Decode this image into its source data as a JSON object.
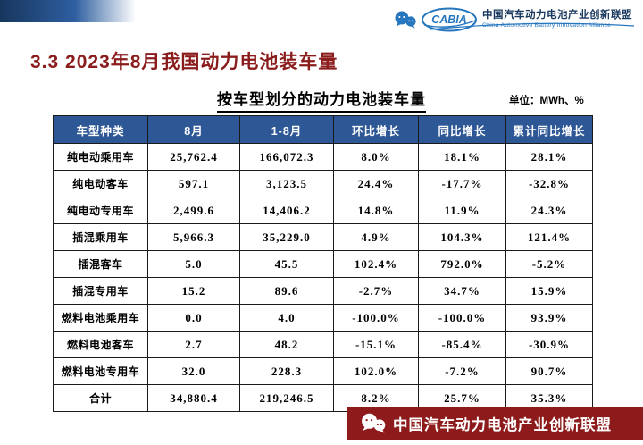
{
  "page": {
    "title": "3.3 2023年8月我国动力电池装车量"
  },
  "header": {
    "logo_text": "CABIA",
    "org_cn": "中国汽车动力电池产业创新联盟",
    "org_en": "China Automotive Battery Innovation Alliance"
  },
  "chart_data": {
    "type": "table",
    "title": "按车型划分的动力电池装车量",
    "unit_label": "单位：MWh、%",
    "columns": [
      "车型种类",
      "8月",
      "1-8月",
      "环比增长",
      "同比增长",
      "累计同比增长"
    ],
    "rows": [
      [
        "纯电动乘用车",
        "25,762.4",
        "166,072.3",
        "8.0%",
        "18.1%",
        "28.1%"
      ],
      [
        "纯电动客车",
        "597.1",
        "3,123.5",
        "24.4%",
        "-17.7%",
        "-32.8%"
      ],
      [
        "纯电动专用车",
        "2,499.6",
        "14,406.2",
        "14.8%",
        "11.9%",
        "24.3%"
      ],
      [
        "插混乘用车",
        "5,966.3",
        "35,229.0",
        "4.9%",
        "104.3%",
        "121.4%"
      ],
      [
        "插混客车",
        "5.0",
        "45.5",
        "102.4%",
        "792.0%",
        "-5.2%"
      ],
      [
        "插混专用车",
        "15.2",
        "89.6",
        "-2.7%",
        "34.7%",
        "15.9%"
      ],
      [
        "燃料电池乘用车",
        "0.0",
        "4.0",
        "-100.0%",
        "-100.0%",
        "93.9%"
      ],
      [
        "燃料电池客车",
        "2.7",
        "48.2",
        "-15.1%",
        "-85.4%",
        "-30.9%"
      ],
      [
        "燃料电池专用车",
        "32.0",
        "228.3",
        "102.0%",
        "-7.2%",
        "90.7%"
      ],
      [
        "合计",
        "34,880.4",
        "219,246.5",
        "8.2%",
        "25.7%",
        "35.3%"
      ]
    ]
  },
  "footer": {
    "org_cn": "中国汽车动力电池产业创新联盟"
  },
  "colors": {
    "title_red": "#8B1C1C",
    "table_header_blue": "#2E5796",
    "footer_red": "#8E1B1B",
    "logo_blue": "#2777BE",
    "banner_navy": "#17365D"
  }
}
